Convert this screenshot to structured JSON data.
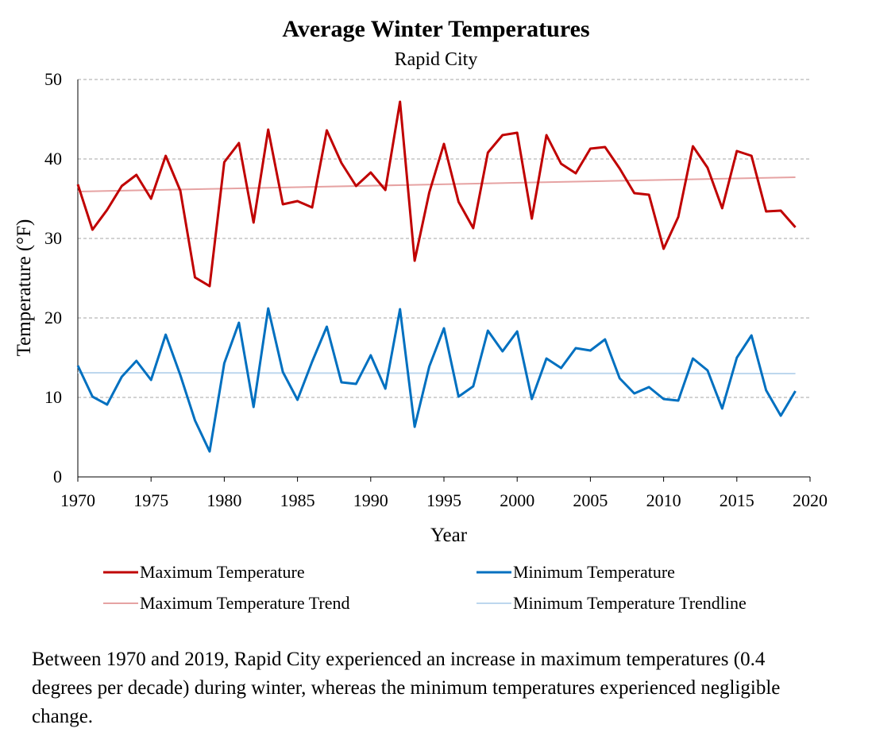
{
  "chart_data": {
    "type": "line",
    "title": "Average Winter Temperatures",
    "subtitle": "Rapid City",
    "xlabel": "Year",
    "ylabel": "Temperature (°F)",
    "xlim": [
      1970,
      2020
    ],
    "ylim": [
      0,
      50
    ],
    "x_ticks": [
      1970,
      1975,
      1980,
      1985,
      1990,
      1995,
      2000,
      2005,
      2010,
      2015,
      2020
    ],
    "y_ticks": [
      0,
      10,
      20,
      30,
      40,
      50
    ],
    "grid": "horizontal dashed",
    "legend_position": "bottom",
    "x": [
      1970,
      1971,
      1972,
      1973,
      1974,
      1975,
      1976,
      1977,
      1978,
      1979,
      1980,
      1981,
      1982,
      1983,
      1984,
      1985,
      1986,
      1987,
      1988,
      1989,
      1990,
      1991,
      1992,
      1993,
      1994,
      1995,
      1996,
      1997,
      1998,
      1999,
      2000,
      2001,
      2002,
      2003,
      2004,
      2005,
      2006,
      2007,
      2008,
      2009,
      2010,
      2011,
      2012,
      2013,
      2014,
      2015,
      2016,
      2017,
      2018,
      2019
    ],
    "series": [
      {
        "name": "Maximum Temperature",
        "color": "#c00000",
        "width": 3,
        "values": [
          36.8,
          31.1,
          33.6,
          36.6,
          38.0,
          35.0,
          40.4,
          36.0,
          25.1,
          24.0,
          39.6,
          42.0,
          32.0,
          43.7,
          34.3,
          34.7,
          33.9,
          43.6,
          39.5,
          36.6,
          38.3,
          36.1,
          47.2,
          27.2,
          35.8,
          41.9,
          34.6,
          31.3,
          40.8,
          43.0,
          43.3,
          32.5,
          43.0,
          39.4,
          38.2,
          41.3,
          41.5,
          38.8,
          35.7,
          35.5,
          28.7,
          32.7,
          41.6,
          38.9,
          33.8,
          41.0,
          40.4,
          33.4,
          33.5,
          31.4
        ]
      },
      {
        "name": "Minimum Temperature",
        "color": "#0070c0",
        "width": 3,
        "values": [
          14.0,
          10.1,
          9.1,
          12.6,
          14.6,
          12.2,
          17.9,
          12.8,
          7.1,
          3.2,
          14.3,
          19.4,
          8.8,
          21.2,
          13.2,
          9.7,
          14.5,
          18.9,
          11.9,
          11.7,
          15.3,
          11.1,
          21.1,
          6.3,
          13.9,
          18.7,
          10.1,
          11.4,
          18.4,
          15.8,
          18.3,
          9.8,
          14.9,
          13.7,
          16.2,
          15.9,
          17.3,
          12.4,
          10.5,
          11.3,
          9.8,
          9.6,
          14.9,
          13.4,
          8.6,
          15.0,
          17.8,
          10.9,
          7.7,
          10.8
        ]
      },
      {
        "name": "Maximum Temperature Trend",
        "color": "#e6a3a3",
        "width": 2,
        "trend": {
          "x": [
            1970,
            2019
          ],
          "y": [
            35.9,
            37.7
          ]
        }
      },
      {
        "name": "Minimum Temperature Trendline",
        "color": "#bdd7ee",
        "width": 2,
        "trend": {
          "x": [
            1970,
            2019
          ],
          "y": [
            13.1,
            13.0
          ]
        }
      }
    ]
  },
  "caption": "Between 1970 and 2019, Rapid City experienced an increase in maximum temperatures (0.4 degrees per decade) during winter, whereas the minimum temperatures experienced negligible change."
}
